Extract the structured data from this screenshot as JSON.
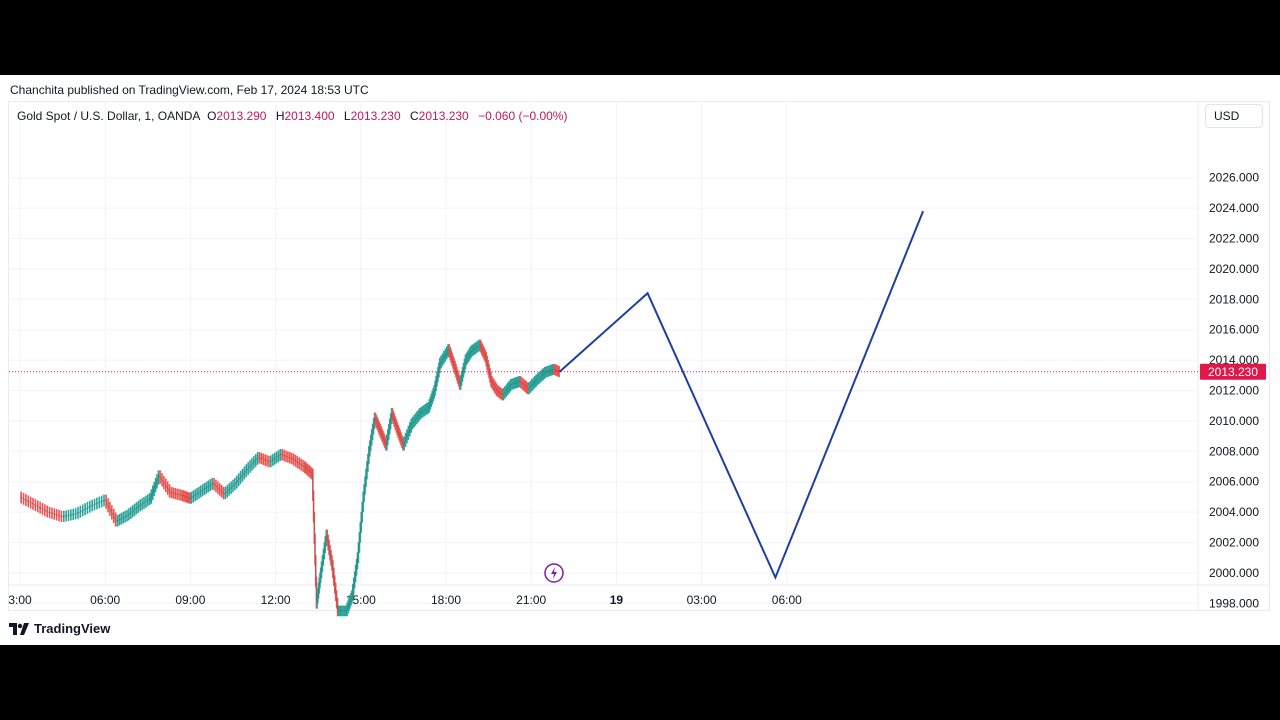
{
  "header": {
    "published_line": "Chanchita published on TradingView.com, Feb 17, 2024 18:53 UTC"
  },
  "legend": {
    "symbol": "Gold Spot / U.S. Dollar, 1, OANDA",
    "open_key": "O",
    "open": "2013.290",
    "high_key": "H",
    "high": "2013.400",
    "low_key": "L",
    "low": "2013.230",
    "close_key": "C",
    "close": "2013.230",
    "change": "−0.060 (−0.00%)"
  },
  "currency": "USD",
  "last_price_label": "2013.230",
  "brand": "TradingView",
  "colors": {
    "projection": "#1f3fa0",
    "up": "#26a69a",
    "down": "#ef5350",
    "price_label_bg": "#e0174a"
  },
  "chart_data": {
    "type": "line",
    "y_axis": {
      "min": 1997.0,
      "max": 2027.0,
      "ticks": [
        "2026.000",
        "2024.000",
        "2022.000",
        "2020.000",
        "2018.000",
        "2016.000",
        "2014.000",
        "2012.000",
        "2010.000",
        "2008.000",
        "2006.000",
        "2004.000",
        "2002.000",
        "2000.000",
        "1998.000"
      ],
      "side": "right"
    },
    "x_axis": {
      "ticks": [
        {
          "label": "3:00",
          "hour": 3
        },
        {
          "label": "06:00",
          "hour": 6
        },
        {
          "label": "09:00",
          "hour": 9
        },
        {
          "label": "12:00",
          "hour": 12
        },
        {
          "label": "15:00",
          "hour": 15
        },
        {
          "label": "18:00",
          "hour": 18
        },
        {
          "label": "21:00",
          "hour": 21
        },
        {
          "label": "19",
          "hour": 24
        },
        {
          "label": "03:00",
          "hour": 27
        },
        {
          "label": "06:00",
          "hour": 30
        }
      ]
    },
    "grid": true,
    "price_path": [
      [
        3.0,
        2005.0
      ],
      [
        3.5,
        2004.5
      ],
      [
        4.0,
        2004.0
      ],
      [
        4.5,
        2003.7
      ],
      [
        5.0,
        2003.9
      ],
      [
        5.5,
        2004.4
      ],
      [
        6.0,
        2004.8
      ],
      [
        6.4,
        2003.4
      ],
      [
        6.8,
        2003.8
      ],
      [
        7.2,
        2004.4
      ],
      [
        7.6,
        2004.9
      ],
      [
        7.9,
        2006.4
      ],
      [
        8.3,
        2005.3
      ],
      [
        8.7,
        2005.1
      ],
      [
        9.0,
        2004.9
      ],
      [
        9.4,
        2005.4
      ],
      [
        9.8,
        2005.9
      ],
      [
        10.2,
        2005.2
      ],
      [
        10.6,
        2005.9
      ],
      [
        11.0,
        2006.8
      ],
      [
        11.4,
        2007.6
      ],
      [
        11.8,
        2007.3
      ],
      [
        12.2,
        2007.8
      ],
      [
        12.6,
        2007.5
      ],
      [
        13.0,
        2007.0
      ],
      [
        13.3,
        2006.5
      ],
      [
        13.45,
        1998.0
      ],
      [
        13.6,
        2000.0
      ],
      [
        13.8,
        2002.5
      ],
      [
        14.0,
        2000.5
      ],
      [
        14.2,
        1997.5
      ],
      [
        14.5,
        1997.5
      ],
      [
        14.7,
        1998.5
      ],
      [
        14.9,
        2001.0
      ],
      [
        15.1,
        2005.0
      ],
      [
        15.3,
        2008.0
      ],
      [
        15.5,
        2010.2
      ],
      [
        15.7,
        2009.3
      ],
      [
        15.9,
        2008.4
      ],
      [
        16.1,
        2010.5
      ],
      [
        16.3,
        2009.4
      ],
      [
        16.5,
        2008.4
      ],
      [
        16.8,
        2009.8
      ],
      [
        17.1,
        2010.5
      ],
      [
        17.4,
        2010.9
      ],
      [
        17.6,
        2012.0
      ],
      [
        17.8,
        2013.8
      ],
      [
        18.1,
        2014.7
      ],
      [
        18.3,
        2013.6
      ],
      [
        18.5,
        2012.4
      ],
      [
        18.7,
        2014.0
      ],
      [
        18.9,
        2014.6
      ],
      [
        19.2,
        2015.0
      ],
      [
        19.4,
        2014.2
      ],
      [
        19.6,
        2012.6
      ],
      [
        19.8,
        2012.0
      ],
      [
        20.0,
        2011.7
      ],
      [
        20.3,
        2012.4
      ],
      [
        20.6,
        2012.6
      ],
      [
        20.9,
        2012.1
      ],
      [
        21.2,
        2012.7
      ],
      [
        21.5,
        2013.2
      ],
      [
        21.8,
        2013.4
      ],
      [
        22.0,
        2013.23
      ]
    ],
    "projection_line": [
      [
        22.0,
        2013.23
      ],
      [
        25.1,
        2018.4
      ],
      [
        29.6,
        1999.7
      ],
      [
        34.8,
        2023.8
      ]
    ],
    "last_price": 2013.23
  }
}
